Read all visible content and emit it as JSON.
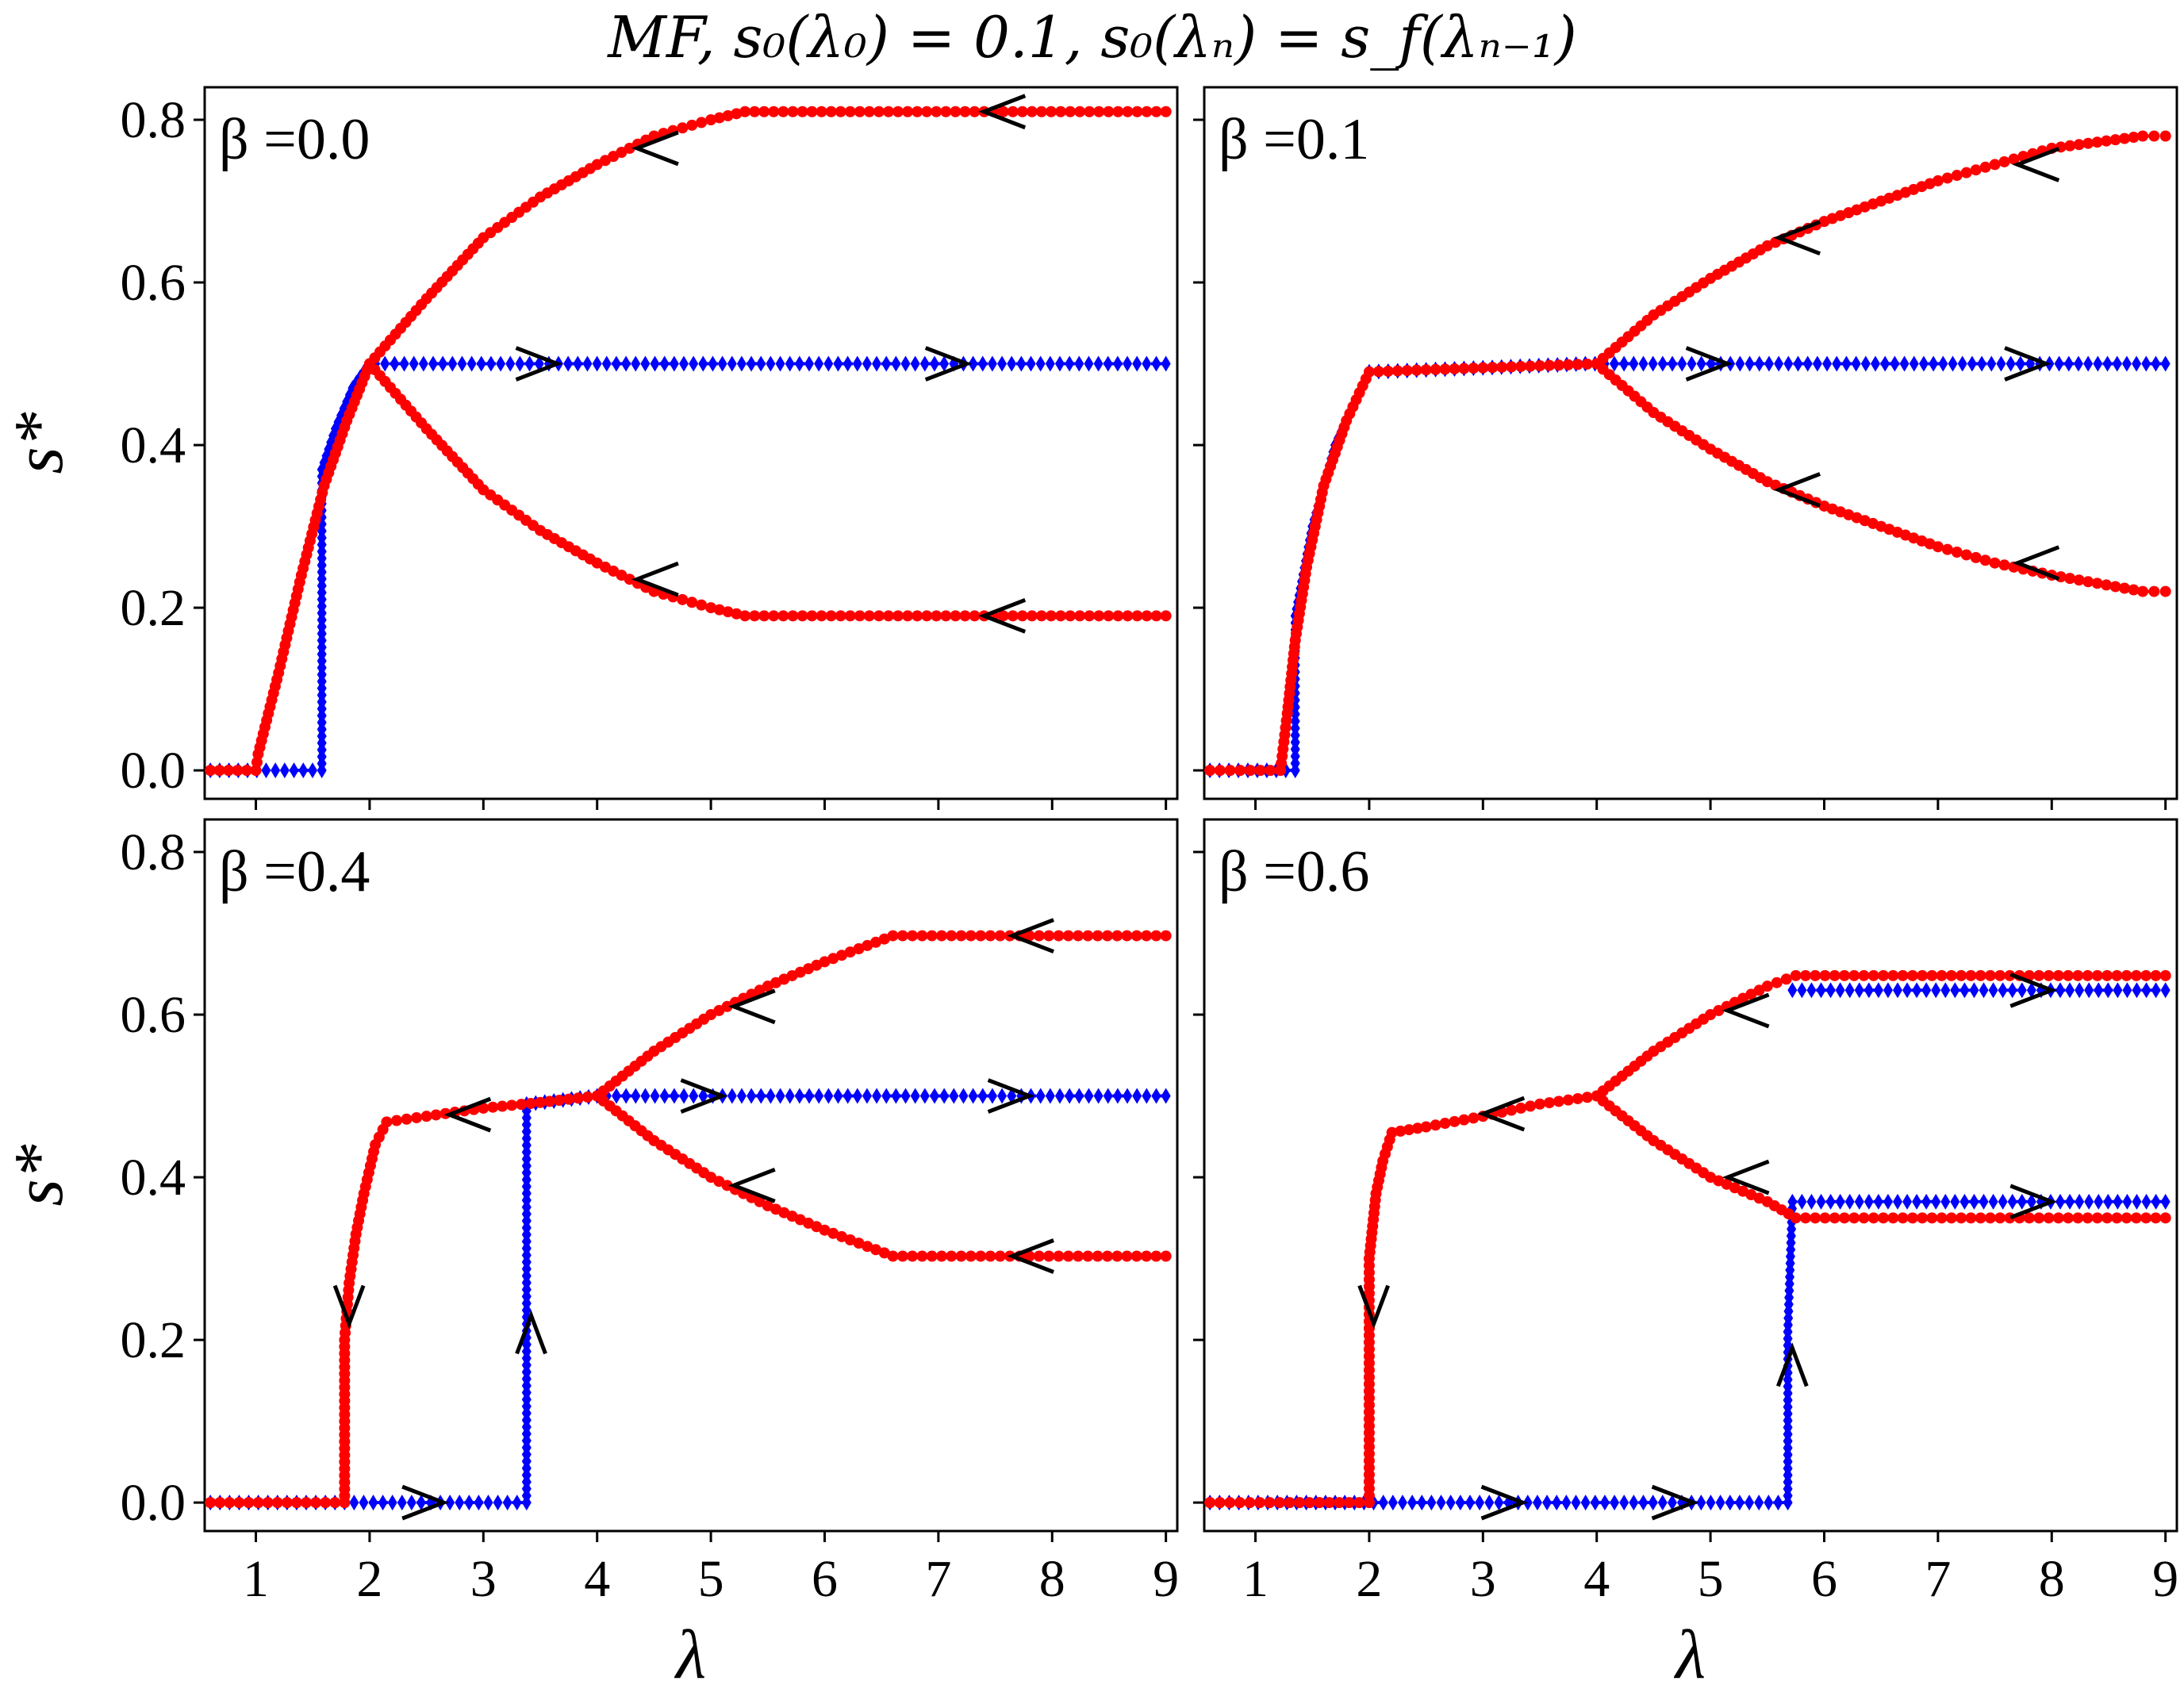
{
  "figure": {
    "title": "MF, s₀(λ₀) = 0.1, s₀(λₙ) = s_f(λₙ₋₁)"
  },
  "colors": {
    "forward": "#0000ff",
    "backward": "#ff0000",
    "arrow": "#000000"
  },
  "chart_data": [
    {
      "type": "scatter",
      "panel_label": "β =0.0",
      "xlabel": "",
      "ylabel": "s*",
      "xlim": [
        0.55,
        9.1
      ],
      "ylim": [
        -0.035,
        0.84
      ],
      "xticks": [
        "1",
        "2",
        "3",
        "4",
        "5",
        "6",
        "7",
        "8",
        "9"
      ],
      "yticks": [
        "0.0",
        "0.2",
        "0.4",
        "0.6",
        "0.8"
      ],
      "show_xtick_labels": false,
      "show_ytick_labels": true,
      "series": [
        {
          "role": "forward",
          "color": "#0000ff",
          "marker": "diamond",
          "segments": [
            {
              "points": [
                [
                  0.6,
                  0
                ],
                [
                  1.58,
                  0
                ],
                [
                  1.58,
                  0.37
                ],
                [
                  1.7,
                  0.42
                ],
                [
                  1.85,
                  0.47
                ],
                [
                  1.95,
                  0.49
                ],
                [
                  2.05,
                  0.5
                ],
                [
                  9.0,
                  0.5
                ]
              ]
            }
          ]
        },
        {
          "role": "backward",
          "color": "#ff0000",
          "marker": "circle",
          "segments": [
            {
              "points": [
                [
                  9.0,
                  0.81
                ],
                [
                  5.3,
                  0.81
                ],
                [
                  5.0,
                  0.8
                ],
                [
                  4.5,
                  0.78
                ],
                [
                  4.0,
                  0.745
                ],
                [
                  3.5,
                  0.705
                ],
                [
                  3.0,
                  0.655
                ],
                [
                  2.5,
                  0.58
                ],
                [
                  2.0,
                  0.5
                ],
                [
                  1.8,
                  0.43
                ],
                [
                  1.6,
                  0.35
                ],
                [
                  1.4,
                  0.24
                ],
                [
                  1.2,
                  0.12
                ],
                [
                  1.02,
                  0.02
                ],
                [
                  1.0,
                  0
                ],
                [
                  0.6,
                  0
                ]
              ]
            },
            {
              "points": [
                [
                  9.0,
                  0.19
                ],
                [
                  5.3,
                  0.19
                ],
                [
                  5.0,
                  0.2
                ],
                [
                  4.5,
                  0.22
                ],
                [
                  4.0,
                  0.255
                ],
                [
                  3.5,
                  0.295
                ],
                [
                  3.0,
                  0.345
                ],
                [
                  2.5,
                  0.42
                ],
                [
                  2.0,
                  0.5
                ]
              ]
            }
          ]
        }
      ],
      "arrows": [
        {
          "x": 4.35,
          "y": 0.765,
          "dir": "left"
        },
        {
          "x": 7.4,
          "y": 0.81,
          "dir": "left"
        },
        {
          "x": 3.65,
          "y": 0.5,
          "dir": "right"
        },
        {
          "x": 7.25,
          "y": 0.5,
          "dir": "right"
        },
        {
          "x": 4.35,
          "y": 0.235,
          "dir": "left"
        },
        {
          "x": 7.4,
          "y": 0.19,
          "dir": "left"
        }
      ]
    },
    {
      "type": "scatter",
      "panel_label": "β =0.1",
      "xlabel": "",
      "ylabel": "",
      "xlim": [
        0.55,
        9.1
      ],
      "ylim": [
        -0.035,
        0.84
      ],
      "xticks": [
        "1",
        "2",
        "3",
        "4",
        "5",
        "6",
        "7",
        "8",
        "9"
      ],
      "yticks": [
        "0.0",
        "0.2",
        "0.4",
        "0.6",
        "0.8"
      ],
      "show_xtick_labels": false,
      "show_ytick_labels": false,
      "series": [
        {
          "role": "forward",
          "color": "#0000ff",
          "marker": "diamond",
          "segments": [
            {
              "points": [
                [
                  0.6,
                  0
                ],
                [
                  1.35,
                  0
                ],
                [
                  1.35,
                  0.19
                ],
                [
                  1.5,
                  0.3
                ],
                [
                  1.7,
                  0.4
                ],
                [
                  2.0,
                  0.49
                ],
                [
                  3.0,
                  0.495
                ],
                [
                  3.9,
                  0.5
                ],
                [
                  9.0,
                  0.5
                ]
              ]
            }
          ]
        },
        {
          "role": "backward",
          "color": "#ff0000",
          "marker": "circle",
          "segments": [
            {
              "points": [
                [
                  9.0,
                  0.78
                ],
                [
                  8.8,
                  0.78
                ],
                [
                  8.0,
                  0.765
                ],
                [
                  7.5,
                  0.745
                ],
                [
                  7.0,
                  0.725
                ],
                [
                  6.5,
                  0.7
                ],
                [
                  6.0,
                  0.675
                ],
                [
                  5.5,
                  0.645
                ],
                [
                  5.0,
                  0.605
                ],
                [
                  4.5,
                  0.56
                ],
                [
                  4.0,
                  0.5
                ],
                [
                  3.0,
                  0.495
                ],
                [
                  2.0,
                  0.49
                ],
                [
                  1.8,
                  0.43
                ],
                [
                  1.6,
                  0.35
                ],
                [
                  1.45,
                  0.25
                ],
                [
                  1.35,
                  0.16
                ],
                [
                  1.28,
                  0.07
                ],
                [
                  1.22,
                  0
                ],
                [
                  0.6,
                  0
                ]
              ]
            },
            {
              "points": [
                [
                  9.0,
                  0.22
                ],
                [
                  8.8,
                  0.22
                ],
                [
                  8.0,
                  0.24
                ],
                [
                  7.5,
                  0.255
                ],
                [
                  7.0,
                  0.275
                ],
                [
                  6.5,
                  0.3
                ],
                [
                  6.0,
                  0.325
                ],
                [
                  5.5,
                  0.355
                ],
                [
                  5.0,
                  0.395
                ],
                [
                  4.5,
                  0.44
                ],
                [
                  4.0,
                  0.5
                ]
              ]
            }
          ]
        }
      ],
      "arrows": [
        {
          "x": 5.6,
          "y": 0.655,
          "dir": "left"
        },
        {
          "x": 7.7,
          "y": 0.745,
          "dir": "left"
        },
        {
          "x": 5.15,
          "y": 0.5,
          "dir": "right"
        },
        {
          "x": 7.95,
          "y": 0.5,
          "dir": "right"
        },
        {
          "x": 5.6,
          "y": 0.345,
          "dir": "left"
        },
        {
          "x": 7.7,
          "y": 0.255,
          "dir": "left"
        }
      ]
    },
    {
      "type": "scatter",
      "panel_label": "β =0.4",
      "xlabel": "λ",
      "ylabel": "s*",
      "xlim": [
        0.55,
        9.1
      ],
      "ylim": [
        -0.035,
        0.84
      ],
      "xticks": [
        "1",
        "2",
        "3",
        "4",
        "5",
        "6",
        "7",
        "8",
        "9"
      ],
      "yticks": [
        "0.0",
        "0.2",
        "0.4",
        "0.6",
        "0.8"
      ],
      "show_xtick_labels": true,
      "show_ytick_labels": true,
      "series": [
        {
          "role": "forward",
          "color": "#0000ff",
          "marker": "diamond",
          "segments": [
            {
              "points": [
                [
                  0.6,
                  0
                ],
                [
                  3.38,
                  0
                ],
                [
                  3.38,
                  0.49
                ],
                [
                  3.7,
                  0.495
                ],
                [
                  4.0,
                  0.5
                ],
                [
                  9.0,
                  0.5
                ]
              ]
            }
          ]
        },
        {
          "role": "backward",
          "color": "#ff0000",
          "marker": "circle",
          "segments": [
            {
              "points": [
                [
                  9.0,
                  0.697
                ],
                [
                  6.6,
                  0.697
                ],
                [
                  6.0,
                  0.665
                ],
                [
                  5.5,
                  0.635
                ],
                [
                  5.0,
                  0.6
                ],
                [
                  4.5,
                  0.555
                ],
                [
                  4.0,
                  0.5
                ],
                [
                  3.5,
                  0.492
                ],
                [
                  3.0,
                  0.485
                ],
                [
                  2.5,
                  0.475
                ],
                [
                  2.15,
                  0.468
                ],
                [
                  2.05,
                  0.44
                ],
                [
                  1.95,
                  0.38
                ],
                [
                  1.88,
                  0.33
                ],
                [
                  1.82,
                  0.27
                ],
                [
                  1.78,
                  0.2
                ],
                [
                  1.78,
                  0
                ],
                [
                  0.6,
                  0
                ]
              ]
            },
            {
              "points": [
                [
                  9.0,
                  0.303
                ],
                [
                  6.6,
                  0.303
                ],
                [
                  6.0,
                  0.335
                ],
                [
                  5.5,
                  0.365
                ],
                [
                  5.0,
                  0.4
                ],
                [
                  4.5,
                  0.445
                ],
                [
                  4.0,
                  0.5
                ]
              ]
            }
          ]
        }
      ],
      "arrows": [
        {
          "x": 5.2,
          "y": 0.61,
          "dir": "left"
        },
        {
          "x": 7.65,
          "y": 0.697,
          "dir": "left"
        },
        {
          "x": 2.7,
          "y": 0.477,
          "dir": "left"
        },
        {
          "x": 5.1,
          "y": 0.5,
          "dir": "right"
        },
        {
          "x": 7.8,
          "y": 0.5,
          "dir": "right"
        },
        {
          "x": 5.2,
          "y": 0.39,
          "dir": "left"
        },
        {
          "x": 7.65,
          "y": 0.303,
          "dir": "left"
        },
        {
          "x": 1.82,
          "y": 0.22,
          "dir": "down"
        },
        {
          "x": 3.42,
          "y": 0.23,
          "dir": "up"
        },
        {
          "x": 2.65,
          "y": 0,
          "dir": "right"
        }
      ]
    },
    {
      "type": "scatter",
      "panel_label": "β =0.6",
      "xlabel": "λ",
      "ylabel": "",
      "xlim": [
        0.55,
        9.1
      ],
      "ylim": [
        -0.035,
        0.84
      ],
      "xticks": [
        "1",
        "2",
        "3",
        "4",
        "5",
        "6",
        "7",
        "8",
        "9"
      ],
      "yticks": [
        "0.0",
        "0.2",
        "0.4",
        "0.6",
        "0.8"
      ],
      "show_xtick_labels": true,
      "show_ytick_labels": false,
      "series": [
        {
          "role": "forward",
          "color": "#0000ff",
          "marker": "diamond",
          "segments": [
            {
              "points": [
                [
                  0.6,
                  0
                ],
                [
                  5.68,
                  0
                ],
                [
                  5.68,
                  0.21
                ],
                [
                  5.72,
                  0.37
                ],
                [
                  9.0,
                  0.37
                ]
              ]
            },
            {
              "points": [
                [
                  5.72,
                  0.63
                ],
                [
                  9.0,
                  0.63
                ]
              ]
            }
          ]
        },
        {
          "role": "backward",
          "color": "#ff0000",
          "marker": "circle",
          "segments": [
            {
              "points": [
                [
                  9.0,
                  0.648
                ],
                [
                  5.75,
                  0.648
                ],
                [
                  5.5,
                  0.635
                ],
                [
                  5.0,
                  0.6
                ],
                [
                  4.5,
                  0.555
                ],
                [
                  4.0,
                  0.5
                ],
                [
                  3.5,
                  0.49
                ],
                [
                  3.0,
                  0.475
                ],
                [
                  2.5,
                  0.462
                ],
                [
                  2.2,
                  0.455
                ],
                [
                  2.12,
                  0.42
                ],
                [
                  2.06,
                  0.38
                ],
                [
                  2.03,
                  0.34
                ],
                [
                  2.0,
                  0.3
                ],
                [
                  2.0,
                  0
                ],
                [
                  0.6,
                  0
                ]
              ]
            },
            {
              "points": [
                [
                  9.0,
                  0.35
                ],
                [
                  5.75,
                  0.35
                ],
                [
                  5.5,
                  0.37
                ],
                [
                  5.0,
                  0.4
                ],
                [
                  4.5,
                  0.445
                ],
                [
                  4.0,
                  0.5
                ]
              ]
            }
          ]
        }
      ],
      "arrows": [
        {
          "x": 5.15,
          "y": 0.605,
          "dir": "left"
        },
        {
          "x": 3.0,
          "y": 0.478,
          "dir": "left"
        },
        {
          "x": 5.15,
          "y": 0.4,
          "dir": "left"
        },
        {
          "x": 8.0,
          "y": 0.63,
          "dir": "right"
        },
        {
          "x": 8.0,
          "y": 0.37,
          "dir": "right"
        },
        {
          "x": 2.04,
          "y": 0.22,
          "dir": "down"
        },
        {
          "x": 5.72,
          "y": 0.19,
          "dir": "up"
        },
        {
          "x": 3.35,
          "y": 0,
          "dir": "right"
        },
        {
          "x": 4.85,
          "y": 0,
          "dir": "right"
        }
      ]
    }
  ]
}
